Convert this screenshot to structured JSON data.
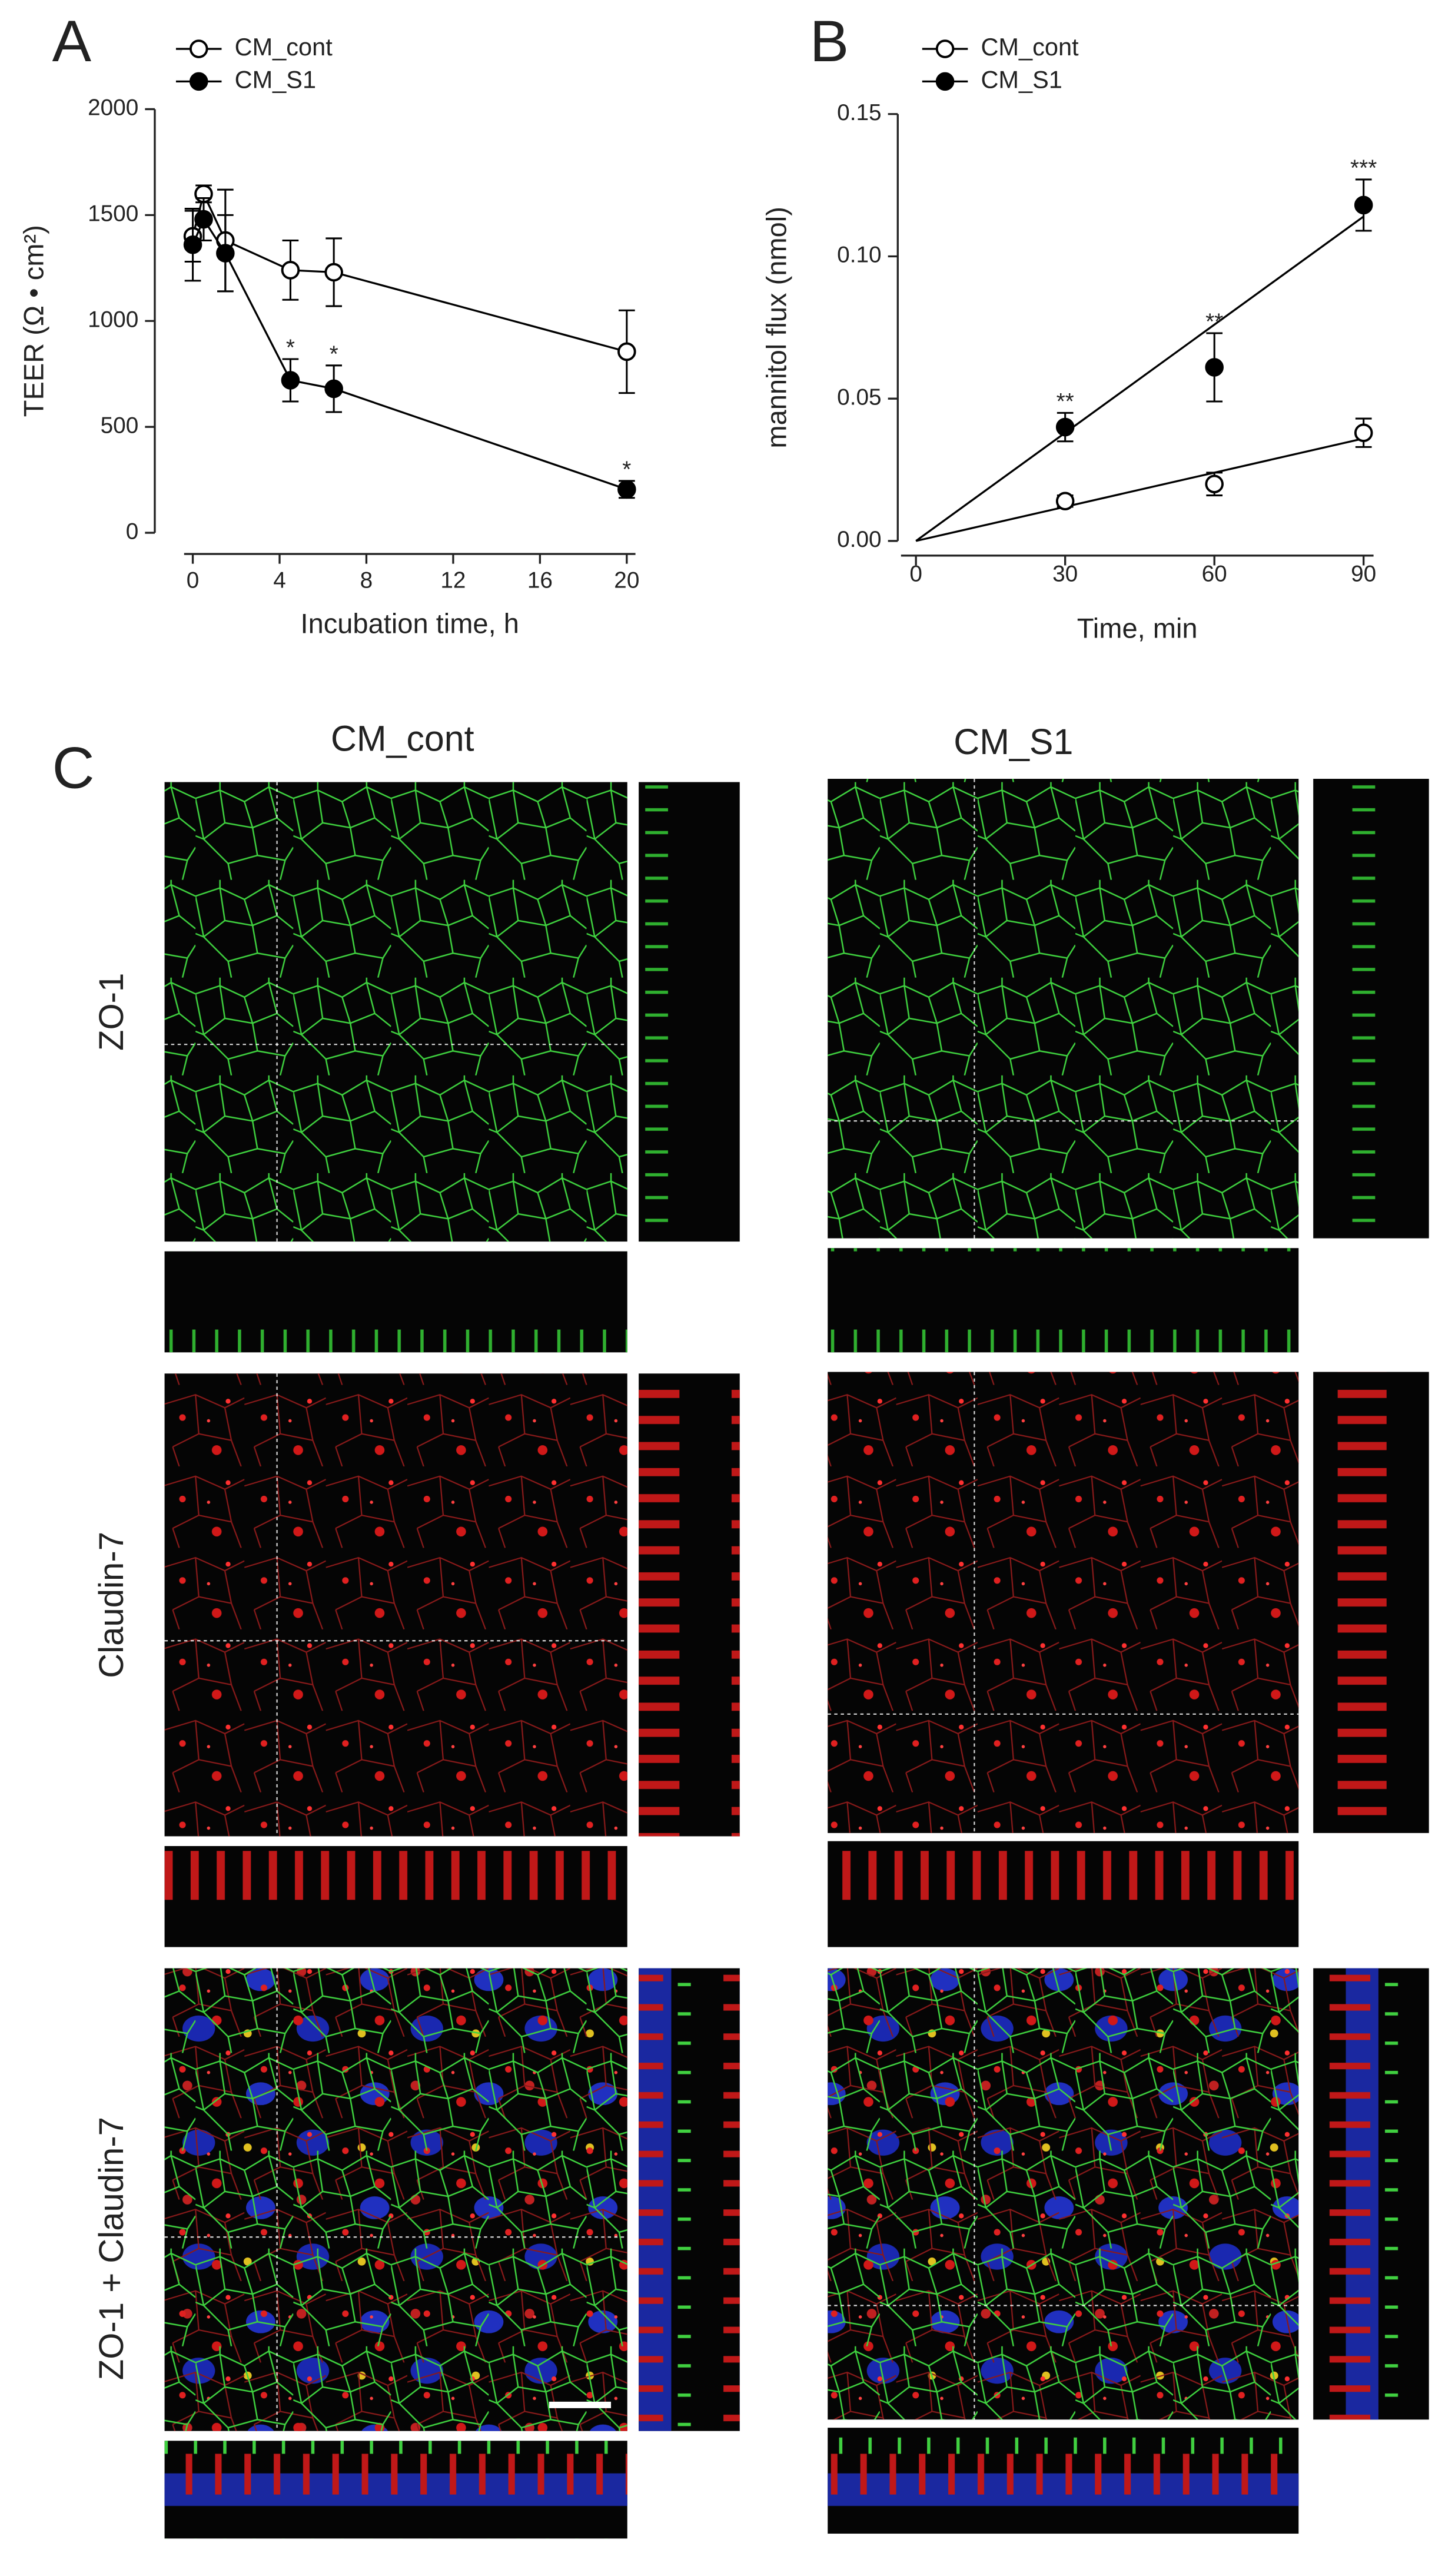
{
  "chart_data": [
    {
      "type": "line",
      "panel_label": "A",
      "xlabel": "Incubation time, h",
      "ylabel": "TEER (Ω • cm²)",
      "x": [
        0,
        0.5,
        1.5,
        4.5,
        6.5,
        20
      ],
      "xlim": [
        -0.4,
        20.4
      ],
      "xticks": [
        0,
        4,
        8,
        12,
        16,
        20
      ],
      "ylim": [
        0,
        2000
      ],
      "yticks": [
        0,
        500,
        1000,
        1500,
        2000
      ],
      "series": [
        {
          "name": "CM_cont",
          "color": "#000000",
          "marker_fill": "#ffffff",
          "values": [
            1400,
            1600,
            1380,
            1240,
            1230,
            855
          ],
          "errors": [
            120,
            40,
            240,
            140,
            160,
            195
          ]
        },
        {
          "name": "CM_S1",
          "color": "#000000",
          "marker_fill": "#000000",
          "values": [
            1360,
            1480,
            1320,
            720,
            680,
            205
          ],
          "errors": [
            170,
            100,
            180,
            100,
            110,
            40
          ],
          "significance": [
            null,
            null,
            null,
            "*",
            "*",
            "*"
          ]
        }
      ]
    },
    {
      "type": "scatter",
      "panel_label": "B",
      "xlabel": "Time, min",
      "ylabel": "mannitol flux  (nmol)",
      "x": [
        30,
        60,
        90
      ],
      "xlim": [
        -3,
        92
      ],
      "xticks": [
        0,
        30,
        60,
        90
      ],
      "ylim": [
        0,
        0.15
      ],
      "yticks": [
        {
          "value": 0,
          "label": "0.00"
        },
        {
          "value": 0.05,
          "label": "0.05"
        },
        {
          "value": 0.1,
          "label": "0.10"
        },
        {
          "value": 0.15,
          "label": "0.15"
        }
      ],
      "series": [
        {
          "name": "CM_cont",
          "color": "#000000",
          "marker_fill": "#ffffff",
          "values": [
            0.014,
            0.02,
            0.038
          ],
          "errors": [
            0.002,
            0.004,
            0.005
          ],
          "fit": {
            "x": [
              0,
              90
            ],
            "values": [
              0,
              0.036
            ]
          }
        },
        {
          "name": "CM_S1",
          "color": "#000000",
          "marker_fill": "#000000",
          "values": [
            0.04,
            0.061,
            0.118
          ],
          "errors": [
            0.005,
            0.012,
            0.009
          ],
          "fit": {
            "x": [
              0,
              90
            ],
            "values": [
              0,
              0.114
            ]
          },
          "significance": [
            "**",
            "**",
            "***"
          ]
        }
      ]
    }
  ],
  "panel_c": {
    "panel_label": "C",
    "columns": [
      "CM_cont",
      "CM_S1"
    ],
    "rows": [
      "ZO-1",
      "Claudin-7",
      "ZO-1 + Claudin-7"
    ]
  }
}
